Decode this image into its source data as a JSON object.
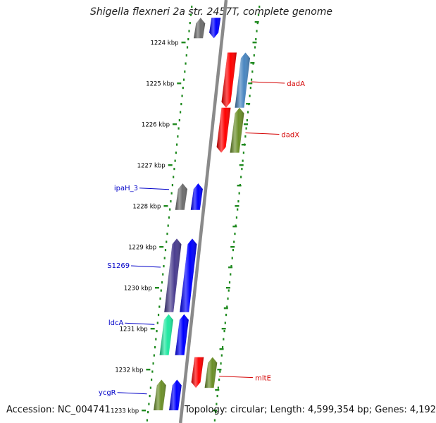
{
  "title": "Shigella flexneri 2a str. 2457T, complete genome",
  "footer": {
    "accession": "Accession: NC_004741",
    "topology": "Topology: circular; Length: 4,599,354 bp; Genes: 4,192"
  },
  "ruler_unit": "kbp",
  "ruler_kbp": [
    1224,
    1225,
    1226,
    1227,
    1228,
    1229,
    1230,
    1231,
    1232,
    1233
  ],
  "colors": {
    "backbone": "#8a8a8a",
    "dots": "#1f8a1f",
    "tick": "#1f8a1f",
    "forward_label": "#d40000",
    "reverse_label": "#0000c8",
    "red": "#ff0000",
    "blue": "#0000ff",
    "steelblue": "#4a86c0",
    "olive": "#6b8f28",
    "grey": "#6e6e6e",
    "purple": "#4a3d8f",
    "mint": "#1fe8a0"
  },
  "features": [
    {
      "strand": "reverse",
      "start_kbp": 1223.4,
      "end_kbp": 1223.9,
      "color": "grey",
      "direction": "up"
    },
    {
      "strand": "reverse",
      "start_kbp": 1223.4,
      "end_kbp": 1223.9,
      "color": "blue",
      "direction": "down"
    },
    {
      "strand": "forward",
      "start_kbp": 1224.25,
      "end_kbp": 1225.6,
      "color": "red",
      "direction": "down"
    },
    {
      "strand": "forward",
      "start_kbp": 1224.25,
      "end_kbp": 1225.6,
      "color": "steelblue",
      "direction": "up"
    },
    {
      "strand": "forward",
      "start_kbp": 1225.6,
      "end_kbp": 1226.7,
      "color": "red",
      "direction": "down"
    },
    {
      "strand": "forward",
      "start_kbp": 1225.6,
      "end_kbp": 1226.7,
      "color": "olive",
      "direction": "up"
    },
    {
      "strand": "reverse",
      "start_kbp": 1227.45,
      "end_kbp": 1228.1,
      "color": "grey",
      "direction": "up"
    },
    {
      "strand": "reverse",
      "start_kbp": 1227.45,
      "end_kbp": 1228.1,
      "color": "blue",
      "direction": "up"
    },
    {
      "strand": "reverse",
      "start_kbp": 1228.8,
      "end_kbp": 1230.6,
      "color": "purple",
      "direction": "up"
    },
    {
      "strand": "reverse",
      "start_kbp": 1228.8,
      "end_kbp": 1230.6,
      "color": "blue",
      "direction": "up"
    },
    {
      "strand": "reverse",
      "start_kbp": 1230.65,
      "end_kbp": 1231.65,
      "color": "mint",
      "direction": "up"
    },
    {
      "strand": "reverse",
      "start_kbp": 1230.65,
      "end_kbp": 1231.65,
      "color": "blue",
      "direction": "up"
    },
    {
      "strand": "forward",
      "start_kbp": 1231.7,
      "end_kbp": 1232.45,
      "color": "red",
      "direction": "down"
    },
    {
      "strand": "forward",
      "start_kbp": 1231.7,
      "end_kbp": 1232.45,
      "color": "olive",
      "direction": "up"
    },
    {
      "strand": "reverse",
      "start_kbp": 1232.25,
      "end_kbp": 1233.0,
      "color": "olive",
      "direction": "up"
    },
    {
      "strand": "reverse",
      "start_kbp": 1232.25,
      "end_kbp": 1233.0,
      "color": "blue",
      "direction": "up"
    }
  ],
  "gene_labels": [
    {
      "text": "dadA",
      "strand": "forward",
      "kbp": 1225.0
    },
    {
      "text": "dadX",
      "strand": "forward",
      "kbp": 1226.25
    },
    {
      "text": "ipaH_3",
      "strand": "reverse",
      "kbp": 1227.6
    },
    {
      "text": "S1269",
      "strand": "reverse",
      "kbp": 1229.5
    },
    {
      "text": "ldcA",
      "strand": "reverse",
      "kbp": 1230.9
    },
    {
      "text": "mltE",
      "strand": "forward",
      "kbp": 1232.2
    },
    {
      "text": "ycgR",
      "strand": "reverse",
      "kbp": 1232.6
    }
  ]
}
